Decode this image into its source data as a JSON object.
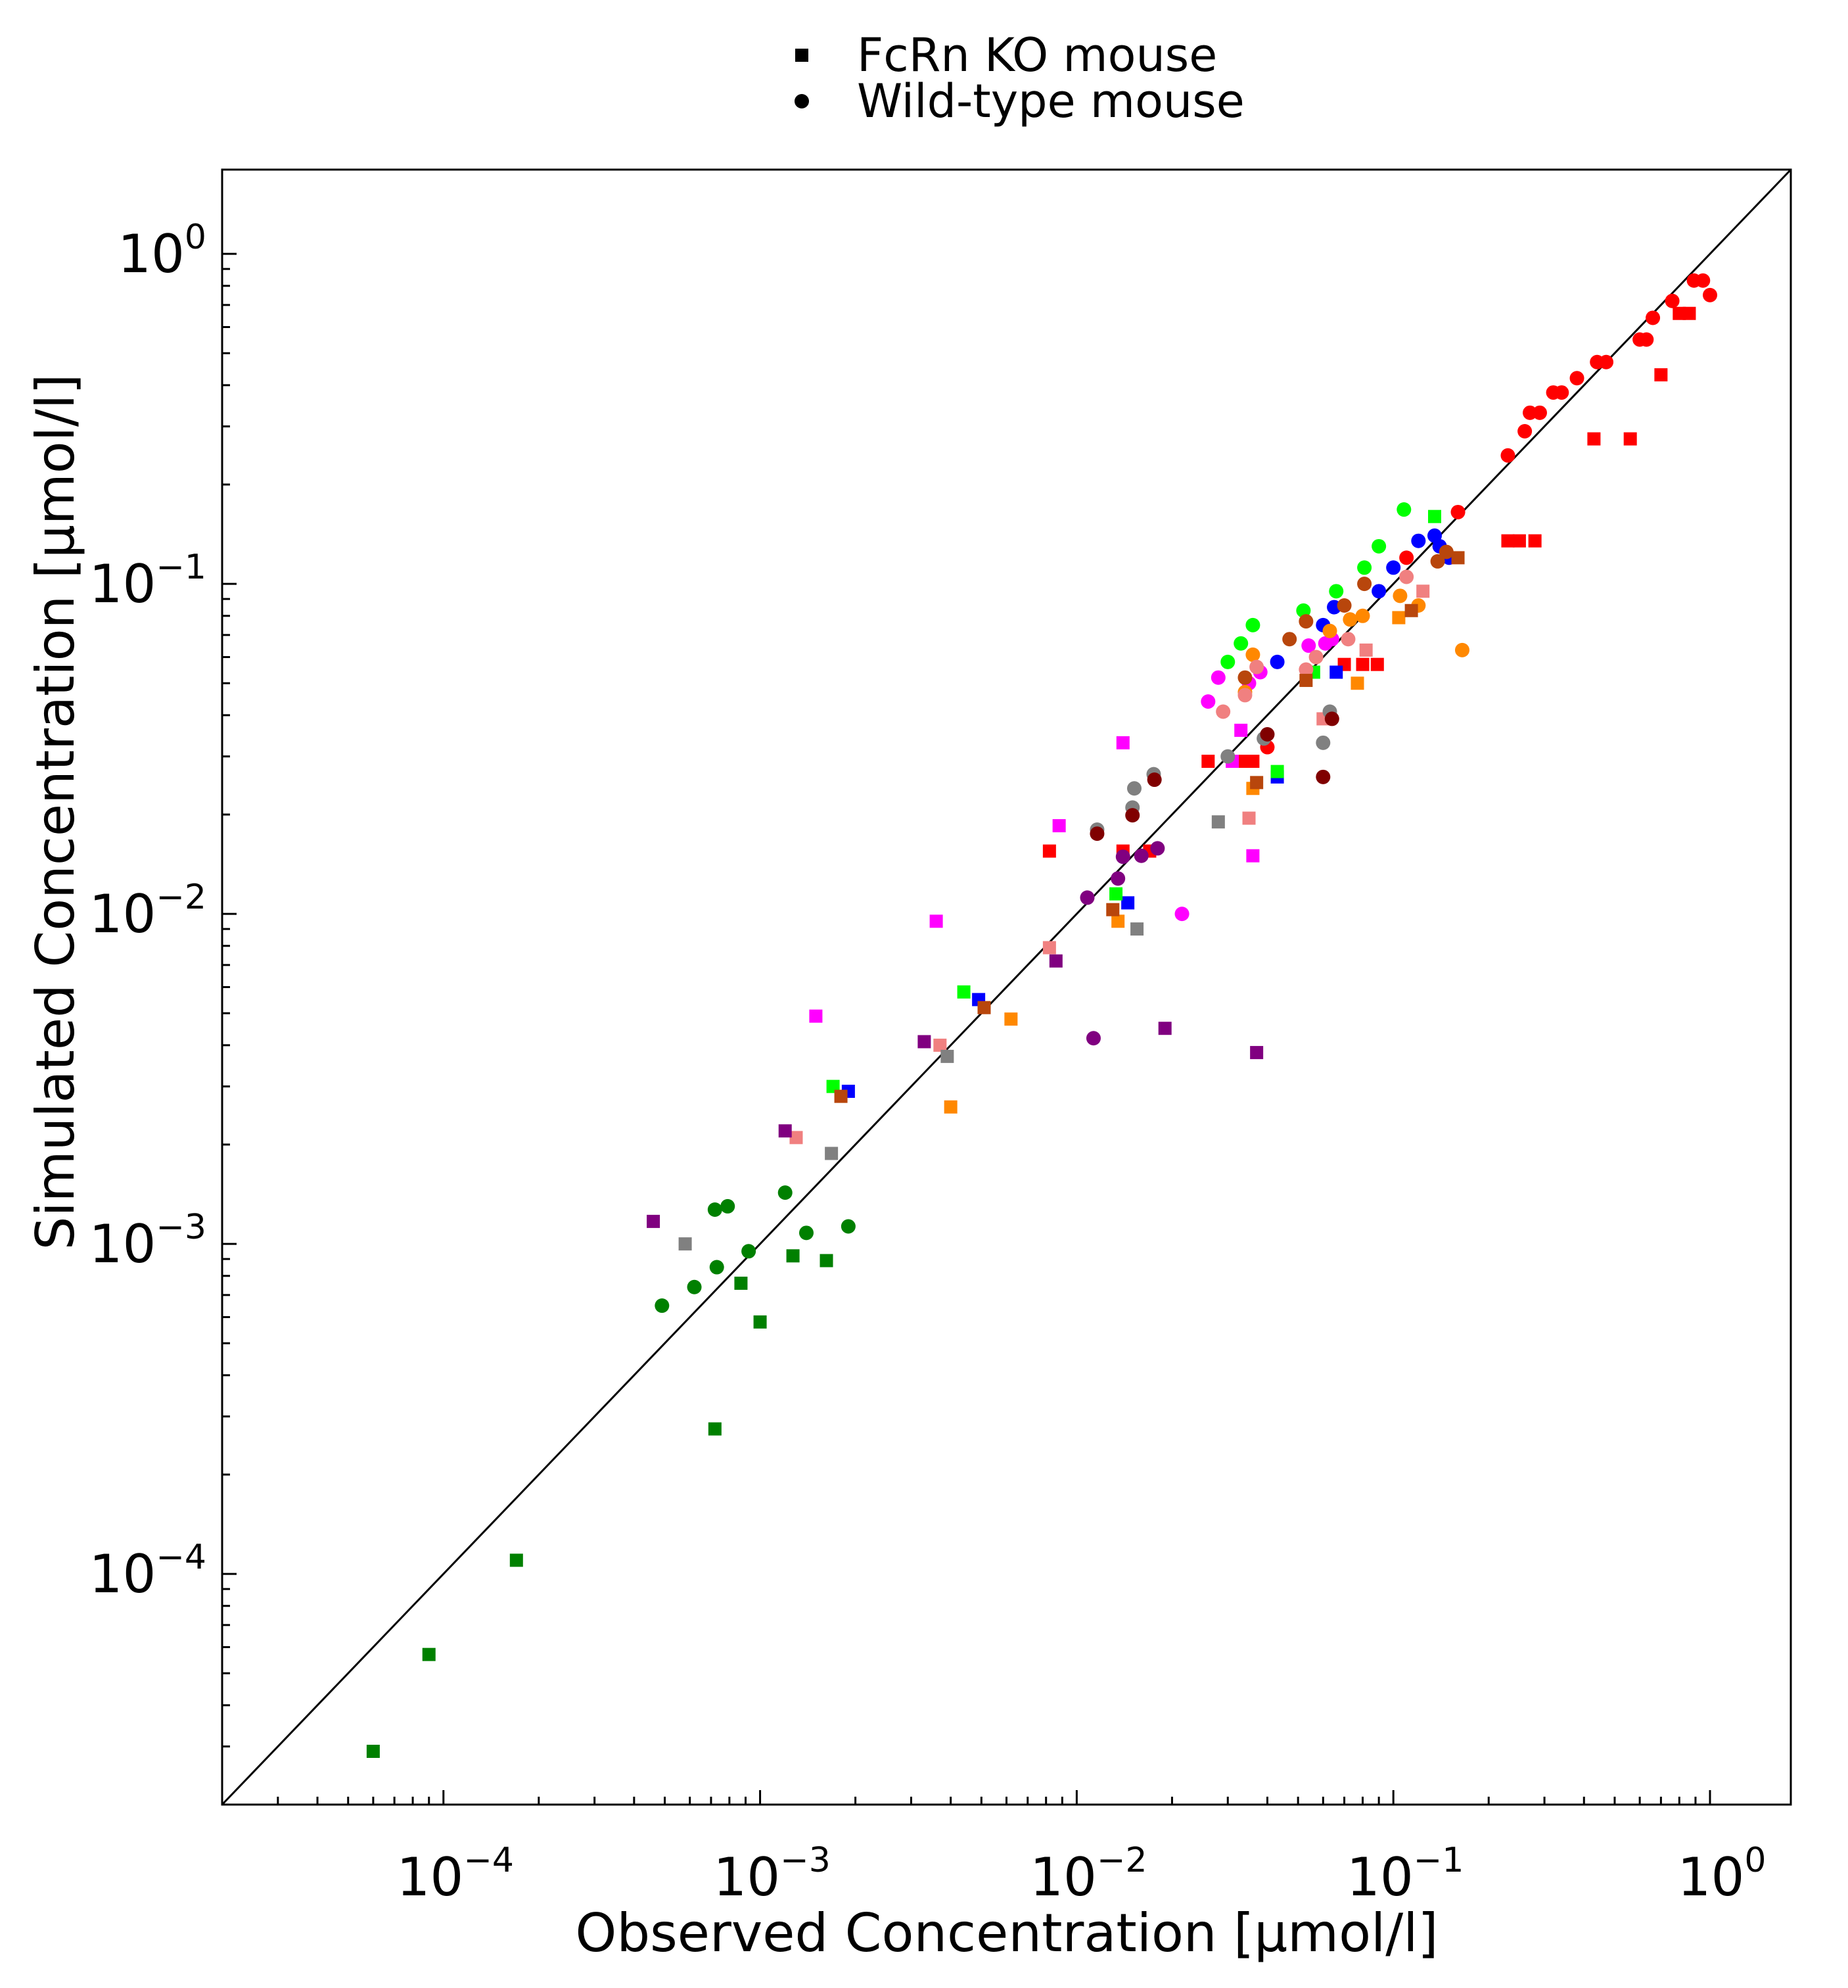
{
  "chart_data": {
    "type": "scatter",
    "title": "",
    "xlabel": "Observed Concentration [µmol/l]",
    "ylabel": "Simulated Concentration [µmol/l]",
    "xscale": "log",
    "yscale": "log",
    "xlim": [
      2e-05,
      1.8
    ],
    "ylim": [
      2e-05,
      1.8
    ],
    "x_ticks": [
      {
        "value": 0.0001,
        "base": "10",
        "exp": "−4"
      },
      {
        "value": 0.001,
        "base": "10",
        "exp": "−3"
      },
      {
        "value": 0.01,
        "base": "10",
        "exp": "−2"
      },
      {
        "value": 0.1,
        "base": "10",
        "exp": "−1"
      },
      {
        "value": 1,
        "base": "10",
        "exp": "0"
      }
    ],
    "y_ticks": [
      {
        "value": 0.0001,
        "base": "10",
        "exp": "−4"
      },
      {
        "value": 0.001,
        "base": "10",
        "exp": "−3"
      },
      {
        "value": 0.01,
        "base": "10",
        "exp": "−2"
      },
      {
        "value": 0.1,
        "base": "10",
        "exp": "−1"
      },
      {
        "value": 1,
        "base": "10",
        "exp": "0"
      }
    ],
    "grid": false,
    "identity_line": true,
    "legend": {
      "placement": "top-center",
      "entries": [
        {
          "label": "FcRn KO mouse",
          "marker": "square"
        },
        {
          "label": "Wild-type mouse",
          "marker": "circle"
        }
      ]
    },
    "series": [
      {
        "color": "#ff0000",
        "marker": "circle",
        "points": [
          [
            0.23,
            0.245
          ],
          [
            0.26,
            0.29
          ],
          [
            0.27,
            0.33
          ],
          [
            0.29,
            0.33
          ],
          [
            0.32,
            0.38
          ],
          [
            0.34,
            0.38
          ],
          [
            0.38,
            0.42
          ],
          [
            0.44,
            0.47
          ],
          [
            0.47,
            0.47
          ],
          [
            0.6,
            0.55
          ],
          [
            0.63,
            0.55
          ],
          [
            0.66,
            0.64
          ],
          [
            0.76,
            0.72
          ],
          [
            0.89,
            0.83
          ],
          [
            0.95,
            0.83
          ],
          [
            1.0,
            0.75
          ],
          [
            0.16,
            0.165
          ],
          [
            0.11,
            0.12
          ],
          [
            0.04,
            0.032
          ]
        ]
      },
      {
        "color": "#ff0000",
        "marker": "square",
        "points": [
          [
            0.8,
            0.66
          ],
          [
            0.86,
            0.66
          ],
          [
            0.7,
            0.43
          ],
          [
            0.43,
            0.275
          ],
          [
            0.56,
            0.275
          ],
          [
            0.23,
            0.135
          ],
          [
            0.25,
            0.135
          ],
          [
            0.28,
            0.135
          ],
          [
            0.07,
            0.057
          ],
          [
            0.08,
            0.057
          ],
          [
            0.089,
            0.057
          ],
          [
            0.026,
            0.029
          ],
          [
            0.033,
            0.029
          ],
          [
            0.036,
            0.029
          ],
          [
            0.0082,
            0.0155
          ],
          [
            0.014,
            0.0155
          ],
          [
            0.017,
            0.0155
          ]
        ]
      },
      {
        "color": "#0000ff",
        "marker": "circle",
        "points": [
          [
            0.06,
            0.075
          ],
          [
            0.065,
            0.085
          ],
          [
            0.09,
            0.095
          ],
          [
            0.1,
            0.112
          ],
          [
            0.12,
            0.135
          ],
          [
            0.135,
            0.14
          ],
          [
            0.14,
            0.13
          ],
          [
            0.15,
            0.12
          ],
          [
            0.043,
            0.058
          ]
        ]
      },
      {
        "color": "#0000ff",
        "marker": "square",
        "points": [
          [
            0.066,
            0.054
          ],
          [
            0.043,
            0.026
          ],
          [
            0.0145,
            0.0108
          ],
          [
            0.0049,
            0.0055
          ],
          [
            0.0019,
            0.0029
          ]
        ]
      },
      {
        "color": "#00ff00",
        "marker": "circle",
        "points": [
          [
            0.03,
            0.058
          ],
          [
            0.033,
            0.066
          ],
          [
            0.036,
            0.075
          ],
          [
            0.052,
            0.083
          ],
          [
            0.066,
            0.095
          ],
          [
            0.081,
            0.112
          ],
          [
            0.09,
            0.13
          ],
          [
            0.108,
            0.168
          ]
        ]
      },
      {
        "color": "#00ff00",
        "marker": "square",
        "points": [
          [
            0.135,
            0.16
          ],
          [
            0.056,
            0.054
          ],
          [
            0.043,
            0.027
          ],
          [
            0.0133,
            0.0115
          ],
          [
            0.0044,
            0.0058
          ],
          [
            0.0017,
            0.003
          ]
        ]
      },
      {
        "color": "#ff00ff",
        "marker": "circle",
        "points": [
          [
            0.0215,
            0.01
          ],
          [
            0.026,
            0.044
          ],
          [
            0.028,
            0.052
          ],
          [
            0.035,
            0.05
          ],
          [
            0.038,
            0.054
          ],
          [
            0.054,
            0.065
          ],
          [
            0.061,
            0.066
          ],
          [
            0.064,
            0.068
          ]
        ]
      },
      {
        "color": "#ff00ff",
        "marker": "square",
        "points": [
          [
            0.014,
            0.033
          ],
          [
            0.0088,
            0.0185
          ],
          [
            0.0036,
            0.0095
          ],
          [
            0.0015,
            0.0049
          ],
          [
            0.033,
            0.036
          ],
          [
            0.036,
            0.015
          ],
          [
            0.031,
            0.029
          ]
        ]
      },
      {
        "color": "#ff8800",
        "marker": "circle",
        "points": [
          [
            0.036,
            0.061
          ],
          [
            0.034,
            0.047
          ],
          [
            0.063,
            0.072
          ],
          [
            0.073,
            0.078
          ],
          [
            0.105,
            0.092
          ],
          [
            0.12,
            0.086
          ],
          [
            0.165,
            0.063
          ],
          [
            0.08,
            0.08
          ]
        ]
      },
      {
        "color": "#ff8800",
        "marker": "square",
        "points": [
          [
            0.104,
            0.079
          ],
          [
            0.077,
            0.05
          ],
          [
            0.036,
            0.024
          ],
          [
            0.0135,
            0.0095
          ],
          [
            0.0062,
            0.0048
          ],
          [
            0.004,
            0.0026
          ]
        ]
      },
      {
        "color": "#f08080",
        "marker": "circle",
        "points": [
          [
            0.029,
            0.041
          ],
          [
            0.034,
            0.046
          ],
          [
            0.053,
            0.055
          ],
          [
            0.072,
            0.068
          ],
          [
            0.11,
            0.105
          ],
          [
            0.057,
            0.06
          ],
          [
            0.037,
            0.056
          ]
        ]
      },
      {
        "color": "#f08080",
        "marker": "square",
        "points": [
          [
            0.082,
            0.063
          ],
          [
            0.124,
            0.095
          ],
          [
            0.06,
            0.039
          ],
          [
            0.035,
            0.0195
          ],
          [
            0.0082,
            0.0079
          ],
          [
            0.0037,
            0.004
          ],
          [
            0.0013,
            0.0021
          ]
        ]
      },
      {
        "color": "#b8460c",
        "marker": "circle",
        "points": [
          [
            0.034,
            0.052
          ],
          [
            0.047,
            0.068
          ],
          [
            0.053,
            0.077
          ],
          [
            0.07,
            0.086
          ],
          [
            0.081,
            0.1
          ],
          [
            0.138,
            0.117
          ],
          [
            0.147,
            0.125
          ]
        ]
      },
      {
        "color": "#b8460c",
        "marker": "square",
        "points": [
          [
            0.16,
            0.12
          ],
          [
            0.114,
            0.083
          ],
          [
            0.053,
            0.051
          ],
          [
            0.037,
            0.025
          ],
          [
            0.013,
            0.0103
          ],
          [
            0.0051,
            0.0052
          ],
          [
            0.0018,
            0.0028
          ]
        ]
      },
      {
        "color": "#808080",
        "marker": "circle",
        "points": [
          [
            0.03,
            0.03
          ],
          [
            0.039,
            0.034
          ],
          [
            0.063,
            0.041
          ],
          [
            0.06,
            0.033
          ],
          [
            0.0116,
            0.018
          ],
          [
            0.015,
            0.021
          ],
          [
            0.0152,
            0.024
          ],
          [
            0.0175,
            0.0265
          ]
        ]
      },
      {
        "color": "#808080",
        "marker": "square",
        "points": [
          [
            0.028,
            0.019
          ],
          [
            0.0155,
            0.009
          ],
          [
            0.0039,
            0.0037
          ],
          [
            0.00168,
            0.00188
          ],
          [
            0.00058,
            0.001
          ]
        ]
      },
      {
        "color": "#800000",
        "marker": "circle",
        "points": [
          [
            0.06,
            0.026
          ],
          [
            0.064,
            0.039
          ],
          [
            0.04,
            0.035
          ],
          [
            0.0116,
            0.0175
          ],
          [
            0.015,
            0.0199
          ],
          [
            0.0176,
            0.0255
          ]
        ]
      },
      {
        "color": "#800080",
        "marker": "circle",
        "points": [
          [
            0.0108,
            0.0112
          ],
          [
            0.0135,
            0.0128
          ],
          [
            0.014,
            0.0149
          ],
          [
            0.016,
            0.015
          ],
          [
            0.018,
            0.0158
          ],
          [
            0.0113,
            0.0042
          ]
        ]
      },
      {
        "color": "#800080",
        "marker": "square",
        "points": [
          [
            0.00046,
            0.00117
          ],
          [
            0.0012,
            0.0022
          ],
          [
            0.0033,
            0.0041
          ],
          [
            0.0086,
            0.0072
          ],
          [
            0.019,
            0.0045
          ],
          [
            0.037,
            0.0038
          ]
        ]
      },
      {
        "color": "#008000",
        "marker": "circle",
        "points": [
          [
            0.00049,
            0.00065
          ],
          [
            0.00062,
            0.00074
          ],
          [
            0.00073,
            0.00085
          ],
          [
            0.00072,
            0.00127
          ],
          [
            0.00079,
            0.0013
          ],
          [
            0.00092,
            0.00095
          ],
          [
            0.0012,
            0.00143
          ],
          [
            0.0014,
            0.00108
          ],
          [
            0.0019,
            0.00113
          ]
        ]
      },
      {
        "color": "#008000",
        "marker": "square",
        "points": [
          [
            6e-05,
            2.9e-05
          ],
          [
            9e-05,
            5.7e-05
          ],
          [
            0.00017,
            0.00011
          ],
          [
            0.00072,
            0.000275
          ],
          [
            0.00087,
            0.00076
          ],
          [
            0.001,
            0.00058
          ],
          [
            0.00127,
            0.00092
          ],
          [
            0.00162,
            0.00089
          ]
        ]
      }
    ]
  }
}
